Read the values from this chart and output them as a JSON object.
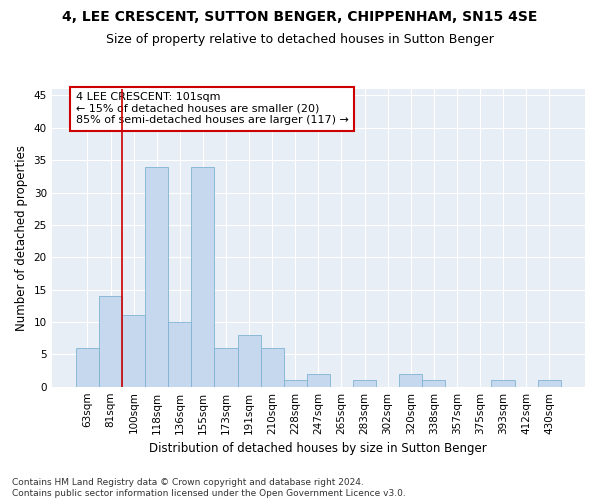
{
  "title": "4, LEE CRESCENT, SUTTON BENGER, CHIPPENHAM, SN15 4SE",
  "subtitle": "Size of property relative to detached houses in Sutton Benger",
  "xlabel": "Distribution of detached houses by size in Sutton Benger",
  "ylabel": "Number of detached properties",
  "categories": [
    "63sqm",
    "81sqm",
    "100sqm",
    "118sqm",
    "136sqm",
    "155sqm",
    "173sqm",
    "191sqm",
    "210sqm",
    "228sqm",
    "247sqm",
    "265sqm",
    "283sqm",
    "302sqm",
    "320sqm",
    "338sqm",
    "357sqm",
    "375sqm",
    "393sqm",
    "412sqm",
    "430sqm"
  ],
  "values": [
    6,
    14,
    11,
    34,
    10,
    34,
    6,
    8,
    6,
    1,
    2,
    0,
    1,
    0,
    2,
    1,
    0,
    0,
    1,
    0,
    1
  ],
  "bar_color": "#c5d8ed",
  "bar_edge_color": "#7fb3d3",
  "vline_color": "#cc0000",
  "vline_x_index": 2,
  "annotation_text": "4 LEE CRESCENT: 101sqm\n← 15% of detached houses are smaller (20)\n85% of semi-detached houses are larger (117) →",
  "annotation_box_color": "#ffffff",
  "annotation_box_edge_color": "#cc0000",
  "ylim": [
    0,
    46
  ],
  "yticks": [
    0,
    5,
    10,
    15,
    20,
    25,
    30,
    35,
    40,
    45
  ],
  "background_color": "#e8eef5",
  "footer_line1": "Contains HM Land Registry data © Crown copyright and database right 2024.",
  "footer_line2": "Contains public sector information licensed under the Open Government Licence v3.0.",
  "title_fontsize": 10,
  "subtitle_fontsize": 9,
  "axis_label_fontsize": 8.5,
  "tick_fontsize": 7.5,
  "annotation_fontsize": 8,
  "footer_fontsize": 6.5
}
